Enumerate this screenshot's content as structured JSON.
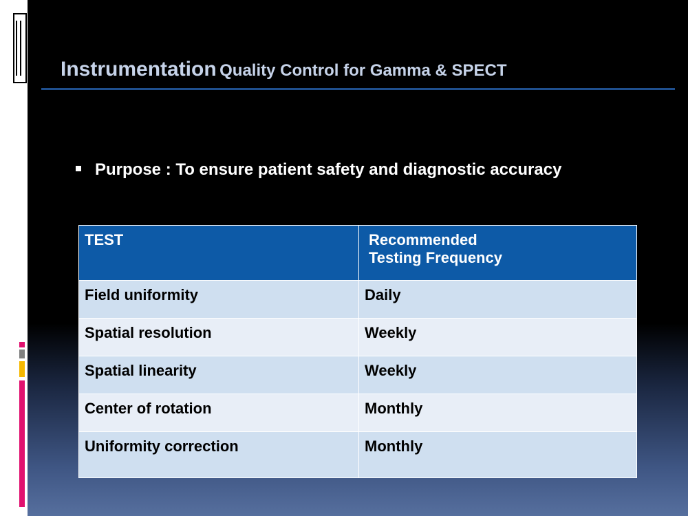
{
  "slide": {
    "title": {
      "main": "Instrumentation",
      "sub": "Quality Control for Gamma & SPECT"
    },
    "bullet": "Purpose : To ensure patient safety and diagnostic accuracy",
    "table": {
      "header": [
        "TEST",
        [
          "Recommended",
          "Testing Frequency"
        ]
      ],
      "rows": [
        [
          "Field uniformity",
          "Daily"
        ],
        [
          "Spatial resolution",
          "Weekly"
        ],
        [
          "Spatial linearity",
          "Weekly"
        ],
        [
          "Center of rotation",
          "Monthly"
        ],
        [
          "Uniformity correction",
          "Monthly"
        ]
      ]
    }
  }
}
